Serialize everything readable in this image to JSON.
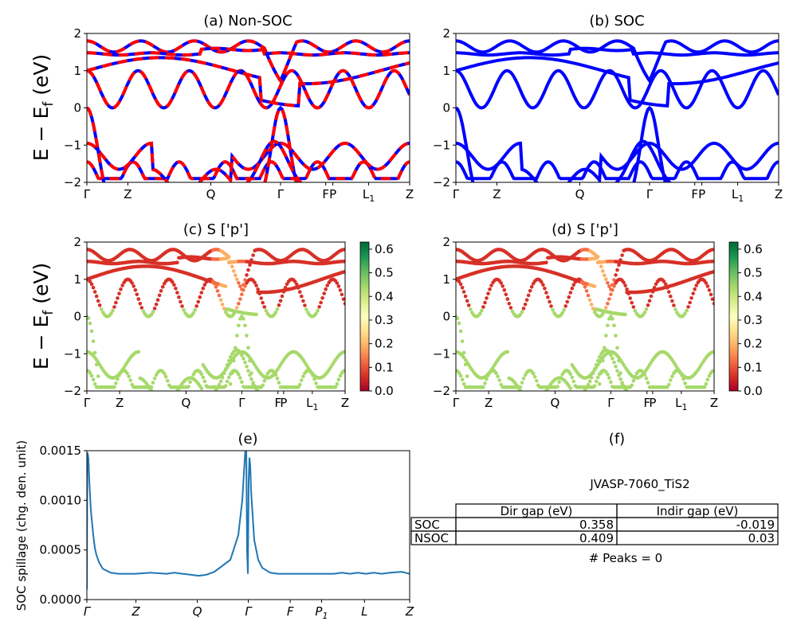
{
  "chart_data": [
    {
      "id": "a",
      "type": "line",
      "title": "(a) Non-SOC",
      "ylabel_tex": [
        "E − E",
        "f",
        " (eV)"
      ],
      "ylim": [
        -2,
        2
      ],
      "yticks": [
        "2",
        "1",
        "0",
        "−1",
        "−2"
      ],
      "xticks": [
        "Γ",
        "Z",
        "Q",
        "Γ",
        "F",
        "P",
        "L",
        "Z"
      ],
      "xtick_sub": {
        "6": "1"
      },
      "series_colors": [
        "#0000ff",
        "#ff0000"
      ],
      "style": "dashed overlay"
    },
    {
      "id": "b",
      "type": "line",
      "title": "(b) SOC",
      "ylim": [
        -2,
        2
      ],
      "yticks": [
        "2",
        "1",
        "0",
        "−1",
        "−2"
      ],
      "xticks": [
        "Γ",
        "Z",
        "Q",
        "Γ",
        "F",
        "P",
        "L",
        "Z"
      ],
      "xtick_sub": {
        "6": "1"
      },
      "series_colors": [
        "#0000ff"
      ]
    },
    {
      "id": "c",
      "type": "scatter",
      "title": "(c)  S ['p']",
      "ylabel_tex": [
        "E − E",
        "f",
        " (eV)"
      ],
      "ylim": [
        -2,
        2
      ],
      "yticks": [
        "2",
        "1",
        "0",
        "−1",
        "−2"
      ],
      "xticks": [
        "Γ",
        "Z",
        "Q",
        "Γ",
        "F",
        "P",
        "L",
        "Z"
      ],
      "xtick_sub": {
        "6": "1"
      },
      "colorbar": {
        "min": 0.0,
        "max": 0.63,
        "ticks": [
          "0.6",
          "0.5",
          "0.4",
          "0.3",
          "0.2",
          "0.1",
          "0.0"
        ],
        "colormap": "RdYlGn"
      }
    },
    {
      "id": "d",
      "type": "scatter",
      "title": "(d) S ['p']",
      "ylim": [
        -2,
        2
      ],
      "yticks": [
        "2",
        "1",
        "0",
        "−1",
        "−2"
      ],
      "xticks": [
        "Γ",
        "Z",
        "Q",
        "Γ",
        "F",
        "P",
        "L",
        "Z"
      ],
      "xtick_sub": {
        "6": "1"
      },
      "colorbar": {
        "min": 0.0,
        "max": 0.63,
        "ticks": [
          "0.6",
          "0.5",
          "0.4",
          "0.3",
          "0.2",
          "0.1",
          "0.0"
        ],
        "colormap": "RdYlGn"
      }
    },
    {
      "id": "e",
      "type": "line",
      "title": "(e)",
      "ylabel": "SOC spillage (chg. den. unit)",
      "ylim": [
        0,
        0.0015
      ],
      "yticks": [
        "0.0015",
        "0.0010",
        "0.0005",
        "0.0000"
      ],
      "xticks": [
        "Γ",
        "Z",
        "Q",
        "Γ",
        "F",
        "P",
        "L",
        "Z"
      ],
      "xtick_sub": {
        "5": "1"
      },
      "x": [
        0,
        0.5,
        1,
        2,
        3,
        5,
        8,
        10,
        12,
        15,
        20,
        30,
        40,
        60,
        80,
        100,
        110,
        120,
        130,
        140,
        150,
        160,
        180,
        190,
        195,
        198,
        199,
        200,
        201,
        202,
        203,
        204,
        205,
        206,
        210,
        215,
        220,
        230,
        240,
        250,
        260,
        270,
        280,
        290,
        300,
        310,
        320,
        330,
        340,
        350,
        360,
        370,
        380,
        395,
        405
      ],
      "values": [
        0.0001,
        0.0013,
        0.00148,
        0.00142,
        0.0012,
        0.0009,
        0.00065,
        0.00052,
        0.00045,
        0.00038,
        0.00031,
        0.00027,
        0.00026,
        0.00026,
        0.00027,
        0.00026,
        0.00027,
        0.00026,
        0.00025,
        0.00024,
        0.00025,
        0.00028,
        0.0004,
        0.00065,
        0.001,
        0.0014,
        0.00152,
        0.0015,
        0.0005,
        0.00026,
        0.0012,
        0.00143,
        0.00135,
        0.0011,
        0.0006,
        0.0004,
        0.00032,
        0.00027,
        0.00026,
        0.00026,
        0.00026,
        0.00026,
        0.00026,
        0.00026,
        0.00026,
        0.00026,
        0.00027,
        0.00026,
        0.00027,
        0.00026,
        0.00027,
        0.00026,
        0.00027,
        0.00028,
        0.00026
      ],
      "line_color": "#1f77b4"
    }
  ],
  "panel_f": {
    "title": "(f)",
    "material": "JVASP-7060_TiS2",
    "table": {
      "headers": [
        "",
        "Dir gap (eV)",
        "Indir gap (eV)"
      ],
      "rows": [
        [
          "SOC",
          "0.358",
          "-0.019"
        ],
        [
          "NSOC",
          "0.409",
          "0.03"
        ]
      ]
    },
    "peaks": "# Peaks = 0"
  }
}
